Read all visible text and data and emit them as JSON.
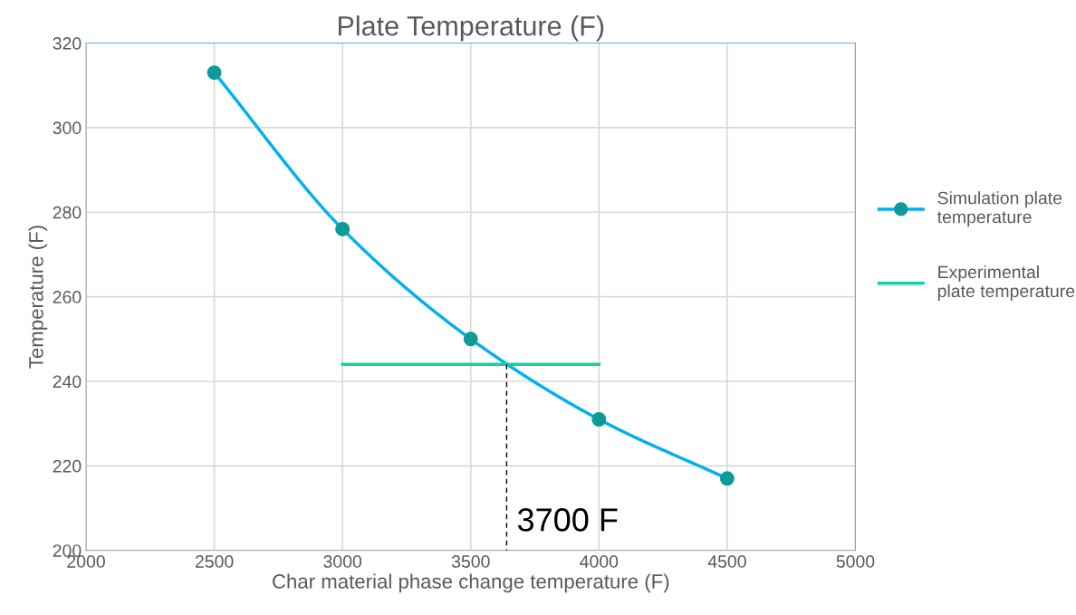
{
  "chart_data": {
    "type": "line",
    "title": "Plate Temperature (F)",
    "xlabel": "Char material phase change temperature (F)",
    "ylabel": "Temperature (F)",
    "x": [
      2500,
      3000,
      3500,
      4000,
      4500
    ],
    "series": [
      {
        "name": "Simulation plate temperature",
        "color": "#00b0f0",
        "colors": [
          "#0f9a96",
          "#0f9a96",
          "#0f9a96",
          "#0f9a96",
          "#0f9a96"
        ],
        "marker": "circle",
        "values": [
          313,
          276,
          250,
          231,
          217
        ]
      },
      {
        "name": "Experimental plate temperature",
        "color": "#14d2a0",
        "marker": "none",
        "x": [
          3000,
          4000
        ],
        "values": [
          244,
          244
        ]
      },
      {
        "type": "line",
        "color": "#000000",
        "marker": "none",
        "line_style": "dashed",
        "x": [
          3640,
          3640
        ],
        "values": [
          200,
          244
        ]
      }
    ],
    "annotations": [
      {
        "text": "3700 F",
        "x": 3640,
        "y": 200
      }
    ],
    "xlim": [
      2000,
      5000
    ],
    "xticks": [
      2000,
      2500,
      3000,
      3500,
      4000,
      4500,
      5000
    ],
    "ylim": [
      200,
      320
    ],
    "yticks": [
      200,
      220,
      240,
      260,
      280,
      300,
      320
    ],
    "grid": true,
    "legend": "right"
  }
}
